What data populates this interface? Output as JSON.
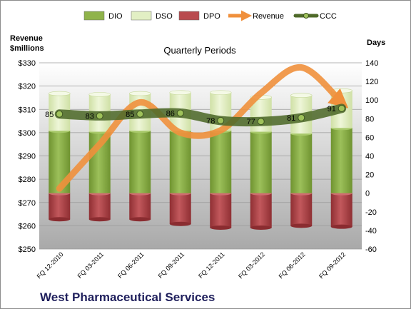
{
  "chart_data": {
    "type": "bar",
    "title": "Quarterly Periods",
    "footer": "West Pharmaceutical Services",
    "y_left_label": [
      "Revenue",
      "$millions"
    ],
    "y_right_label": "Days",
    "categories": [
      "FQ 12-2010",
      "FQ 03-2011",
      "FQ 06-2011",
      "FQ 09-2011",
      "FQ 12-2011",
      "FQ 03-2012",
      "FQ 06-2012",
      "FQ 09-2012"
    ],
    "left_axis": {
      "min": 250,
      "max": 330,
      "step": 10,
      "prefix": "$"
    },
    "right_axis": {
      "min": -60,
      "max": 140,
      "step": 20
    },
    "legend_position": "top",
    "legend": [
      {
        "label": "DIO",
        "kind": "bar",
        "color": "#8fb34a"
      },
      {
        "label": "DSO",
        "kind": "bar",
        "color": "#e2efc4"
      },
      {
        "label": "DPO",
        "kind": "bar",
        "color": "#b94a4e"
      },
      {
        "label": "Revenue",
        "kind": "arrow",
        "color": "#f0903c"
      },
      {
        "label": "CCC",
        "kind": "line",
        "color": "#4f6a2a"
      }
    ],
    "series": [
      {
        "name": "DIO",
        "axis": "right",
        "values": [
          67,
          66,
          67,
          67,
          67,
          66,
          64,
          70
        ]
      },
      {
        "name": "DSO",
        "axis": "right",
        "values": [
          40,
          40,
          40,
          41,
          41,
          37,
          41,
          40
        ]
      },
      {
        "name": "DPO",
        "axis": "right",
        "values": [
          -28,
          -28,
          -28,
          -33,
          -37,
          -37,
          -35,
          -36
        ]
      },
      {
        "name": "Revenue",
        "axis": "left",
        "values": [
          276,
          295,
          313,
          300,
          301,
          317,
          328,
          313
        ]
      },
      {
        "name": "CCC",
        "axis": "right",
        "values": [
          85,
          83,
          85,
          86,
          78,
          77,
          81,
          91
        ]
      }
    ],
    "ccc_labels": [
      "85",
      "83",
      "85",
      "86",
      "78",
      "77",
      "81",
      "91"
    ]
  }
}
